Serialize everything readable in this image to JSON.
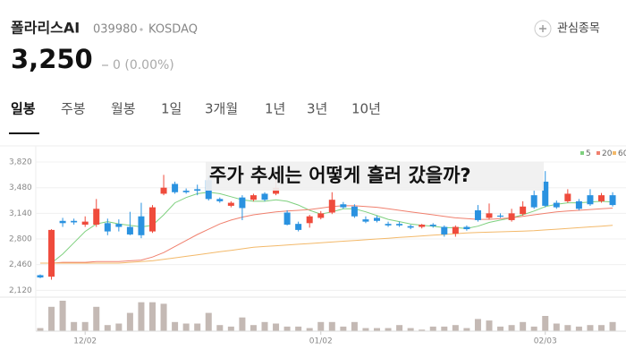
{
  "header": {
    "name": "폴라리스AI",
    "code": "039980",
    "market": "KOSDAQ",
    "watch_button": "관심종목"
  },
  "price": {
    "value": "3,250",
    "change": "0 (0.00%)"
  },
  "tabs": [
    "일봉",
    "주봉",
    "월봉",
    "1일",
    "3개월",
    "1년",
    "3년",
    "10년"
  ],
  "overlay_text": "주가 추세는 어떻게 흘러 갔을까?",
  "chart_data": {
    "type": "candlestick",
    "up_color": "#ef4b3c",
    "down_color": "#2a92e0",
    "volume_color": "#c4b9b4",
    "grid": true,
    "ylim": [
      2100,
      3880
    ],
    "yticks": [
      {
        "value": 2120,
        "label": "2,120"
      },
      {
        "value": 2460,
        "label": "2,460"
      },
      {
        "value": 2800,
        "label": "2,800"
      },
      {
        "value": 3140,
        "label": "3,140"
      },
      {
        "value": 3480,
        "label": "3,480"
      },
      {
        "value": 3820,
        "label": "3,820"
      }
    ],
    "categories": [
      null,
      null,
      null,
      null,
      "12/02",
      null,
      null,
      null,
      null,
      null,
      null,
      null,
      null,
      null,
      null,
      null,
      null,
      null,
      null,
      null,
      null,
      null,
      null,
      null,
      null,
      "01/02",
      null,
      null,
      null,
      null,
      null,
      null,
      null,
      null,
      null,
      null,
      null,
      null,
      null,
      null,
      null,
      null,
      null,
      null,
      null,
      "02/03",
      null,
      null,
      null,
      null,
      null,
      null
    ],
    "open": [
      2320,
      2300,
      3040,
      3040,
      2990,
      2990,
      3010,
      3000,
      2960,
      3100,
      2900,
      3400,
      3530,
      3440,
      3460,
      3580,
      3330,
      3240,
      3350,
      3320,
      3400,
      3400,
      3150,
      3000,
      3010,
      3080,
      3150,
      3260,
      3230,
      3060,
      3080,
      3000,
      3000,
      2970,
      2960,
      2990,
      2960,
      2870,
      2960,
      3180,
      3080,
      3110,
      3050,
      3130,
      3380,
      3560,
      3280,
      3300,
      3300,
      3380,
      3300,
      3380
    ],
    "high": [
      2330,
      2930,
      3080,
      3070,
      3100,
      3330,
      3070,
      3060,
      3160,
      3280,
      3250,
      3650,
      3560,
      3470,
      3520,
      3640,
      3350,
      3300,
      3380,
      3400,
      3420,
      3600,
      3180,
      3030,
      3120,
      3170,
      3420,
      3290,
      3260,
      3100,
      3110,
      3030,
      3030,
      2990,
      3000,
      3010,
      2980,
      2980,
      2980,
      3250,
      3270,
      3140,
      3200,
      3300,
      3440,
      3700,
      3310,
      3460,
      3330,
      3460,
      3410,
      3420
    ],
    "low": [
      2280,
      2260,
      2960,
      2990,
      2960,
      2960,
      2850,
      2900,
      2850,
      2810,
      2880,
      3380,
      3400,
      3400,
      3380,
      3310,
      3280,
      3220,
      3050,
      3300,
      3300,
      3380,
      2980,
      2900,
      2950,
      3060,
      3130,
      3200,
      3080,
      3010,
      3020,
      2960,
      2960,
      2930,
      2940,
      2950,
      2830,
      2830,
      2910,
      3030,
      3060,
      3080,
      3030,
      3110,
      3200,
      3220,
      3200,
      3280,
      3180,
      3240,
      3280,
      3230
    ],
    "close": [
      2290,
      2920,
      3010,
      3020,
      3030,
      3200,
      2900,
      2960,
      2860,
      2850,
      3220,
      3480,
      3420,
      3420,
      3440,
      3330,
      3300,
      3280,
      3210,
      3380,
      3320,
      3480,
      2990,
      2920,
      3100,
      3140,
      3320,
      3220,
      3100,
      3030,
      3040,
      2980,
      2980,
      2950,
      2990,
      2970,
      2860,
      2960,
      2930,
      3050,
      3140,
      3100,
      3140,
      3230,
      3220,
      3240,
      3220,
      3400,
      3200,
      3260,
      3380,
      3250
    ],
    "volume": [
      10,
      80,
      100,
      30,
      30,
      80,
      20,
      25,
      60,
      95,
      95,
      90,
      30,
      25,
      25,
      60,
      20,
      15,
      45,
      20,
      30,
      25,
      15,
      15,
      10,
      30,
      30,
      15,
      30,
      10,
      10,
      10,
      20,
      10,
      5,
      15,
      15,
      20,
      10,
      40,
      35,
      15,
      20,
      30,
      15,
      50,
      25,
      20,
      15,
      20,
      20,
      30
    ],
    "series": [
      {
        "name": "5",
        "color": "#7ed07e",
        "values": [
          null,
          2480,
          2600,
          2750,
          2900,
          3000,
          3030,
          3000,
          2980,
          2960,
          2980,
          3120,
          3280,
          3350,
          3400,
          3420,
          3400,
          3360,
          3320,
          3300,
          3300,
          3320,
          3300,
          3250,
          3180,
          3130,
          3160,
          3200,
          3200,
          3160,
          3110,
          3060,
          3030,
          3000,
          2980,
          2970,
          2950,
          2950,
          2940,
          2970,
          3020,
          3050,
          3080,
          3120,
          3170,
          3230,
          3260,
          3280,
          3280,
          3290,
          3300,
          3290
        ]
      },
      {
        "name": "20",
        "color": "#f0806e",
        "values": [
          2480,
          2480,
          2490,
          2490,
          2490,
          2500,
          2500,
          2500,
          2510,
          2520,
          2560,
          2620,
          2700,
          2780,
          2860,
          2930,
          3000,
          3050,
          3090,
          3120,
          3140,
          3160,
          3170,
          3180,
          3190,
          3210,
          3230,
          3240,
          3240,
          3230,
          3220,
          3200,
          3180,
          3160,
          3140,
          3120,
          3100,
          3080,
          3070,
          3060,
          3060,
          3070,
          3080,
          3100,
          3120,
          3140,
          3160,
          3170,
          3180,
          3190,
          3200,
          3210
        ]
      },
      {
        "name": "60",
        "color": "#f3b96a",
        "values": [
          2480,
          2480,
          2480,
          2480,
          2480,
          2480,
          2480,
          2480,
          2490,
          2500,
          2510,
          2530,
          2550,
          2570,
          2590,
          2610,
          2630,
          2650,
          2670,
          2690,
          2700,
          2710,
          2720,
          2730,
          2740,
          2750,
          2760,
          2770,
          2780,
          2790,
          2800,
          2810,
          2820,
          2830,
          2840,
          2850,
          2860,
          2870,
          2880,
          2885,
          2890,
          2895,
          2900,
          2905,
          2910,
          2920,
          2930,
          2940,
          2950,
          2960,
          2970,
          2980
        ]
      }
    ]
  }
}
